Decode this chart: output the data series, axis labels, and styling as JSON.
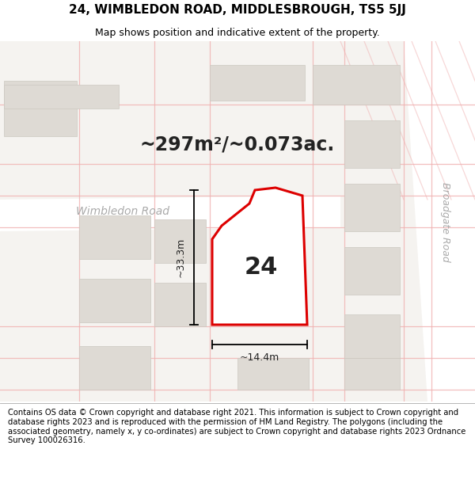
{
  "title": "24, WIMBLEDON ROAD, MIDDLESBROUGH, TS5 5JJ",
  "subtitle": "Map shows position and indicative extent of the property.",
  "area_text": "~297m²/~0.073ac.",
  "property_number": "24",
  "dim_width": "~14.4m",
  "dim_height": "~33.3m",
  "footer": "Contains OS data © Crown copyright and database right 2021. This information is subject to Crown copyright and database rights 2023 and is reproduced with the permission of HM Land Registry. The polygons (including the associated geometry, namely x, y co-ordinates) are subject to Crown copyright and database rights 2023 Ordnance Survey 100026316.",
  "bg_map": "#f5f3f0",
  "building_fill": "#dedad4",
  "building_edge": "#ccc8c0",
  "property_fill": "#ffffff",
  "property_edge": "#dd0000",
  "road_fill": "#ffffff",
  "grid_color": "#f0b0b0",
  "road_label": "Wimbledon Road",
  "road_label2": "Broadgate Road",
  "title_fontsize": 11,
  "subtitle_fontsize": 9,
  "footer_fontsize": 7.2,
  "area_fontsize": 17,
  "number_fontsize": 22,
  "road_label_fontsize": 10,
  "road_label2_fontsize": 9
}
